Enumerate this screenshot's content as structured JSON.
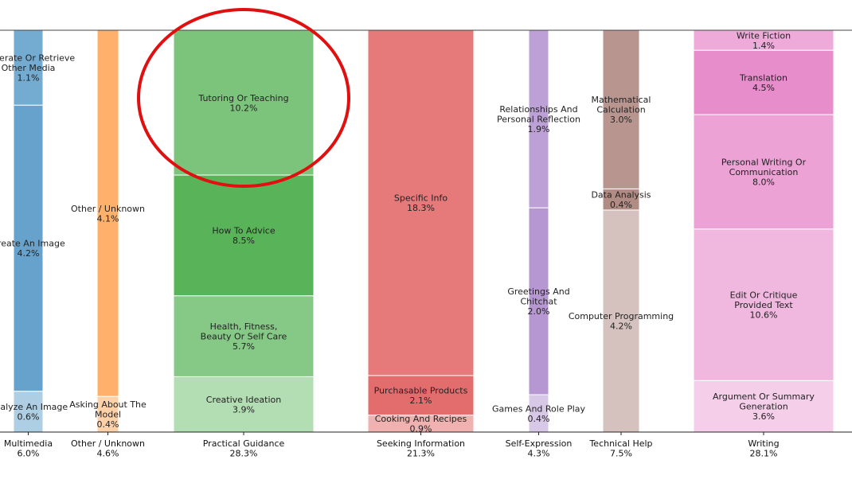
{
  "chart_data": {
    "type": "bar",
    "subtype": "stacked-mekko",
    "y_unit": "percent",
    "ylim": [
      0,
      100
    ],
    "grid": false,
    "legend": "none",
    "categories": [
      {
        "name": "Multimedia",
        "total": "6.0%",
        "color": "#1f77b4",
        "segments": [
          {
            "label": "Analyze An Image",
            "value": 0.6,
            "value_label": "0.6%"
          },
          {
            "label": "Create An Image",
            "value": 4.2,
            "value_label": "4.2%"
          },
          {
            "label": "Generate Or Retrieve Other Media",
            "value": 1.1,
            "value_label": "1.1%"
          }
        ]
      },
      {
        "name": "Other / Unknown",
        "total": "4.6%",
        "color": "#ff7f0e",
        "segments": [
          {
            "label": "Asking About The Model",
            "value": 0.4,
            "value_label": "0.4%"
          },
          {
            "label": "Other / Unknown",
            "value": 4.1,
            "value_label": "4.1%"
          }
        ]
      },
      {
        "name": "Practical Guidance",
        "total": "28.3%",
        "color": "#2ca02c",
        "segments": [
          {
            "label": "Creative Ideation",
            "value": 3.9,
            "value_label": "3.9%"
          },
          {
            "label": "Health, Fitness, Beauty Or Self Care",
            "value": 5.7,
            "value_label": "5.7%"
          },
          {
            "label": "How To Advice",
            "value": 8.5,
            "value_label": "8.5%"
          },
          {
            "label": "Tutoring Or Teaching",
            "value": 10.2,
            "value_label": "10.2%"
          }
        ]
      },
      {
        "name": "Seeking Information",
        "total": "21.3%",
        "color": "#d62728",
        "segments": [
          {
            "label": "Cooking And Recipes",
            "value": 0.9,
            "value_label": "0.9%"
          },
          {
            "label": "Purchasable Products",
            "value": 2.1,
            "value_label": "2.1%"
          },
          {
            "label": "Specific Info",
            "value": 18.3,
            "value_label": "18.3%"
          }
        ]
      },
      {
        "name": "Self-Expression",
        "total": "4.3%",
        "color": "#9467bd",
        "segments": [
          {
            "label": "Games And Role Play",
            "value": 0.4,
            "value_label": "0.4%"
          },
          {
            "label": "Greetings And Chitchat",
            "value": 2.0,
            "value_label": "2.0%"
          },
          {
            "label": "Relationships And Personal Reflection",
            "value": 1.9,
            "value_label": "1.9%"
          }
        ]
      },
      {
        "name": "Technical Help",
        "total": "7.5%",
        "color": "#8c564b",
        "segments": [
          {
            "label": "Computer Programming",
            "value": 4.2,
            "value_label": "4.2%"
          },
          {
            "label": "Data Analysis",
            "value": 0.4,
            "value_label": "0.4%"
          },
          {
            "label": "Mathematical Calculation",
            "value": 3.0,
            "value_label": "3.0%"
          }
        ]
      },
      {
        "name": "Writing",
        "total": "28.1%",
        "color": "#e377c2",
        "segments": [
          {
            "label": "Argument Or Summary Generation",
            "value": 3.6,
            "value_label": "3.6%"
          },
          {
            "label": "Edit Or Critique Provided Text",
            "value": 10.6,
            "value_label": "10.6%"
          },
          {
            "label": "Personal Writing Or Communication",
            "value": 8.0,
            "value_label": "8.0%"
          },
          {
            "label": "Translation",
            "value": 4.5,
            "value_label": "4.5%"
          },
          {
            "label": "Write Fiction",
            "value": 1.4,
            "value_label": "1.4%"
          }
        ]
      }
    ],
    "annotations": [
      {
        "type": "ellipse",
        "target": "Tutoring Or Teaching",
        "color": "#e01010"
      }
    ]
  }
}
